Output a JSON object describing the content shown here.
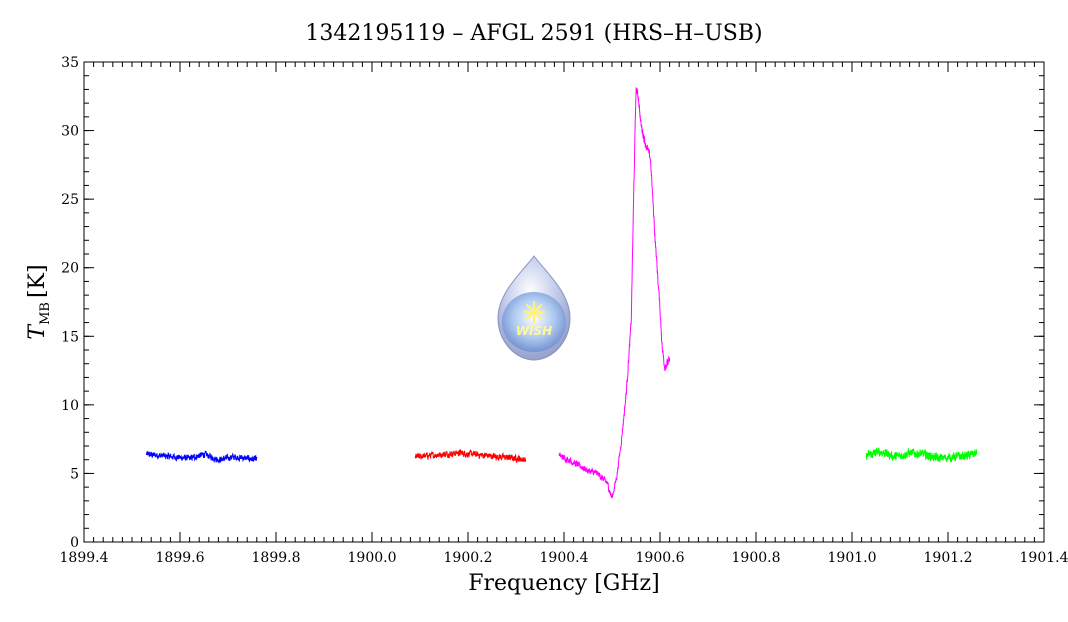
{
  "chart_data": {
    "type": "line",
    "title": "1342195119 – AFGL 2591 (HRS–H–USB)",
    "xlabel": "Frequency [GHz]",
    "ylabel_main": "T",
    "ylabel_sub": "MB",
    "ylabel_unit": "[K]",
    "xlim": [
      1899.4,
      1901.4
    ],
    "ylim": [
      0,
      35
    ],
    "x_ticks": [
      1899.4,
      1899.6,
      1899.8,
      1900.0,
      1900.2,
      1900.4,
      1900.6,
      1900.8,
      1901.0,
      1901.2,
      1901.4
    ],
    "x_tick_labels": [
      "1899.4",
      "1899.6",
      "1899.8",
      "1900.0",
      "1900.2",
      "1900.4",
      "1900.6",
      "1900.8",
      "1901.0",
      "1901.2",
      "1901.4"
    ],
    "y_ticks": [
      0,
      5,
      10,
      15,
      20,
      25,
      30,
      35
    ],
    "y_tick_labels": [
      "0",
      "5",
      "10",
      "15",
      "20",
      "25",
      "30",
      "35"
    ],
    "grid": false,
    "logo_text": "WISH",
    "series": [
      {
        "color": "#0000ff",
        "x_range": [
          1899.53,
          1899.76
        ],
        "baseline": 6.2,
        "noise": 0.35,
        "points": [
          [
            1899.53,
            6.4
          ],
          [
            1899.56,
            6.3
          ],
          [
            1899.59,
            6.2
          ],
          [
            1899.62,
            6.1
          ],
          [
            1899.65,
            6.4
          ],
          [
            1899.68,
            6.0
          ],
          [
            1899.71,
            6.2
          ],
          [
            1899.74,
            6.1
          ],
          [
            1899.76,
            6.0
          ]
        ]
      },
      {
        "color": "#ff0000",
        "x_range": [
          1900.09,
          1900.32
        ],
        "baseline": 6.3,
        "noise": 0.35,
        "points": [
          [
            1900.09,
            6.2
          ],
          [
            1900.12,
            6.3
          ],
          [
            1900.15,
            6.4
          ],
          [
            1900.18,
            6.5
          ],
          [
            1900.21,
            6.4
          ],
          [
            1900.24,
            6.3
          ],
          [
            1900.27,
            6.2
          ],
          [
            1900.3,
            6.1
          ],
          [
            1900.32,
            6.0
          ]
        ]
      },
      {
        "color": "#ff00ff",
        "x_range": [
          1900.39,
          1900.62
        ],
        "baseline": 5.5,
        "noise": 0.35,
        "points": [
          [
            1900.39,
            6.3
          ],
          [
            1900.41,
            6.0
          ],
          [
            1900.43,
            5.6
          ],
          [
            1900.45,
            5.2
          ],
          [
            1900.47,
            5.0
          ],
          [
            1900.49,
            4.3
          ],
          [
            1900.5,
            3.2
          ],
          [
            1900.51,
            4.8
          ],
          [
            1900.52,
            7.5
          ],
          [
            1900.53,
            11.0
          ],
          [
            1900.54,
            16.0
          ],
          [
            1900.545,
            25.0
          ],
          [
            1900.55,
            33.0
          ],
          [
            1900.555,
            32.5
          ],
          [
            1900.56,
            30.5
          ],
          [
            1900.57,
            29.0
          ],
          [
            1900.58,
            28.0
          ],
          [
            1900.59,
            22.0
          ],
          [
            1900.6,
            17.0
          ],
          [
            1900.605,
            14.0
          ],
          [
            1900.61,
            12.8
          ],
          [
            1900.62,
            13.2
          ]
        ]
      },
      {
        "color": "#00ff00",
        "x_range": [
          1901.03,
          1901.26
        ],
        "baseline": 6.3,
        "noise": 0.5,
        "points": [
          [
            1901.03,
            6.3
          ],
          [
            1901.06,
            6.6
          ],
          [
            1901.09,
            6.2
          ],
          [
            1901.12,
            6.5
          ],
          [
            1901.15,
            6.4
          ],
          [
            1901.18,
            6.1
          ],
          [
            1901.21,
            6.2
          ],
          [
            1901.24,
            6.3
          ],
          [
            1901.26,
            6.5
          ]
        ]
      }
    ]
  }
}
